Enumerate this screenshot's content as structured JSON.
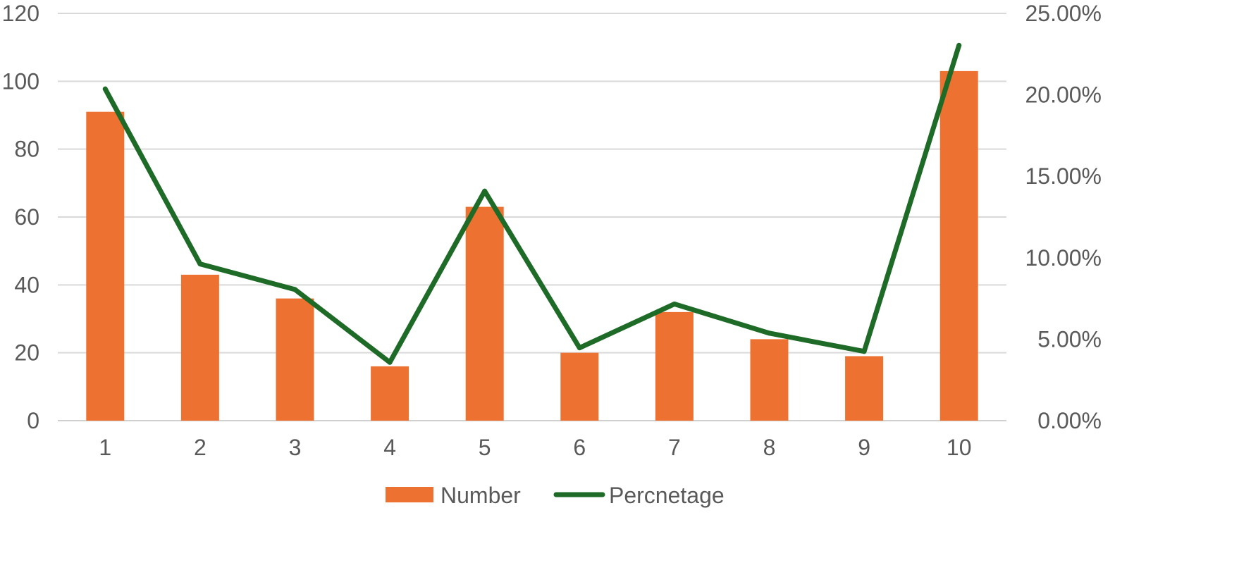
{
  "chart_data": {
    "type": "bar",
    "categories": [
      "1",
      "2",
      "3",
      "4",
      "5",
      "6",
      "7",
      "8",
      "9",
      "10"
    ],
    "series": [
      {
        "name": "Number",
        "type": "bar",
        "axis": "left",
        "color": "#ED7232",
        "values": [
          91,
          43,
          36,
          16,
          63,
          20,
          32,
          24,
          19,
          103
        ]
      },
      {
        "name": "Percnetage",
        "type": "line",
        "axis": "right",
        "color": "#1E6B28",
        "values": [
          0.2036,
          0.0962,
          0.0805,
          0.0358,
          0.1409,
          0.0447,
          0.0716,
          0.0537,
          0.0425,
          0.2304
        ]
      }
    ],
    "y_left": {
      "ylim": [
        0,
        120
      ],
      "ticks": [
        "0",
        "20",
        "40",
        "60",
        "80",
        "100",
        "120"
      ]
    },
    "y_right": {
      "ylim": [
        0,
        0.25
      ],
      "ticks": [
        "0.00%",
        "5.00%",
        "10.00%",
        "15.00%",
        "20.00%",
        "25.00%"
      ]
    },
    "grid": true,
    "legend": "bottom-center"
  }
}
